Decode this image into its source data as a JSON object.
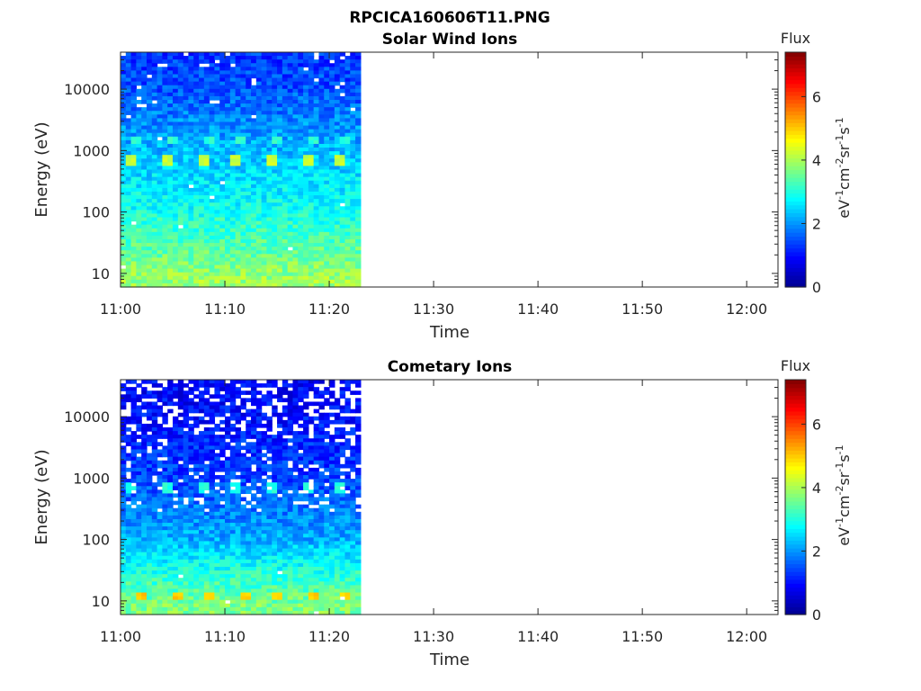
{
  "figure": {
    "title": "RPCICA160606T11.PNG"
  },
  "colormap": [
    "#00008f",
    "#0000ff",
    "#0080ff",
    "#00ffff",
    "#80ff80",
    "#ffff00",
    "#ff8000",
    "#ff0000",
    "#800000"
  ],
  "chart_data": [
    {
      "type": "heatmap",
      "title": "Solar Wind Ions",
      "xlabel": "Time",
      "ylabel": "Energy (eV)",
      "xticks": [
        "11:00",
        "11:10",
        "11:20",
        "11:30",
        "11:40",
        "11:50",
        "12:00"
      ],
      "xlim_minutes": [
        0,
        63
      ],
      "data_end_minute": 23,
      "yscale": "log",
      "ylim": [
        6,
        40000
      ],
      "yticks": [
        10,
        100,
        1000,
        10000
      ],
      "ytick_labels": [
        "10",
        "100",
        "1000",
        "10000"
      ],
      "colorbar": {
        "label": "Flux",
        "unit_label": "eV-1cm-2sr-1s-1",
        "range": [
          0,
          7.4
        ],
        "ticks": [
          0,
          2,
          4,
          6
        ],
        "tick_labels": [
          "0",
          "2",
          "4",
          "6"
        ]
      },
      "flux_profile": [
        {
          "energy": 8,
          "flux": 3.9
        },
        {
          "energy": 30,
          "flux": 3.4
        },
        {
          "energy": 100,
          "flux": 2.9
        },
        {
          "energy": 1000,
          "flux": 2.3
        },
        {
          "energy": 10000,
          "flux": 1.5
        },
        {
          "energy": 40000,
          "flux": 1.3
        }
      ],
      "peaks": [
        {
          "energy": 700,
          "flux": 4.2,
          "minutes": [
            1,
            4.5,
            8,
            11,
            14.5,
            18,
            21
          ]
        },
        {
          "energy": 1500,
          "flux": 3.1,
          "minutes": [
            1.5,
            5,
            8.5,
            11.5,
            15,
            18.5,
            21.5
          ]
        }
      ]
    },
    {
      "type": "heatmap",
      "title": "Cometary Ions",
      "xlabel": "Time",
      "ylabel": "Energy (eV)",
      "xticks": [
        "11:00",
        "11:10",
        "11:20",
        "11:30",
        "11:40",
        "11:50",
        "12:00"
      ],
      "xlim_minutes": [
        0,
        63
      ],
      "data_end_minute": 23,
      "yscale": "log",
      "ylim": [
        6,
        40000
      ],
      "yticks": [
        10,
        100,
        1000,
        10000
      ],
      "ytick_labels": [
        "10",
        "100",
        "1000",
        "10000"
      ],
      "colorbar": {
        "label": "Flux",
        "unit_label": "eV-1cm-2sr-1s-1",
        "range": [
          0,
          7.4
        ],
        "ticks": [
          0,
          2,
          4,
          6
        ],
        "tick_labels": [
          "0",
          "2",
          "4",
          "6"
        ]
      },
      "flux_profile": [
        {
          "energy": 8,
          "flux": 3.7
        },
        {
          "energy": 30,
          "flux": 3.0
        },
        {
          "energy": 100,
          "flux": 2.2
        },
        {
          "energy": 1000,
          "flux": 1.4
        },
        {
          "energy": 10000,
          "flux": 1.0
        },
        {
          "energy": 40000,
          "flux": 0.9
        }
      ],
      "peaks": [
        {
          "energy": 12,
          "flux": 5.0,
          "minutes": [
            2,
            5.5,
            8.5,
            12,
            15,
            18.5,
            21.5
          ]
        },
        {
          "energy": 700,
          "flux": 3.0,
          "minutes": [
            1,
            4.5,
            8,
            11,
            14.5,
            18,
            21
          ]
        }
      ]
    }
  ]
}
